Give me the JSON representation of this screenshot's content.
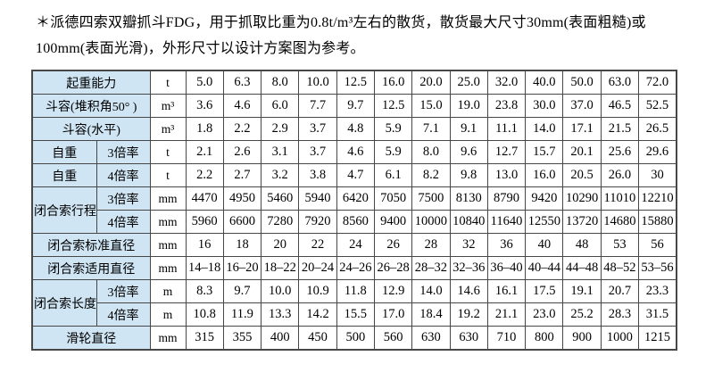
{
  "note": "＊派德四索双瓣抓斗FDG，用于抓取比重为0.8t/m³左右的散货，散货最大尺寸30mm(表面粗糙)或100mm(表面光滑)，外形尺寸以设计方案图为参考。",
  "colors": {
    "label_bg": "#cfe5f3",
    "border": "#474747"
  },
  "table": {
    "rows": [
      {
        "label": "起重能力",
        "label_colspan": 2,
        "unit": "t",
        "values": [
          "5.0",
          "6.3",
          "8.0",
          "10.0",
          "12.5",
          "16.0",
          "20.0",
          "25.0",
          "32.0",
          "40.0",
          "50.0",
          "63.0",
          "72.0"
        ]
      },
      {
        "label": "斗容(堆积角50° )",
        "label_colspan": 2,
        "unit": "m³",
        "values": [
          "3.6",
          "4.6",
          "6.0",
          "7.7",
          "9.7",
          "12.5",
          "15.0",
          "19.0",
          "23.8",
          "30.0",
          "37.0",
          "46.5",
          "52.5"
        ]
      },
      {
        "label": "斗容(水平)",
        "label_colspan": 2,
        "unit": "m³",
        "values": [
          "1.8",
          "2.2",
          "2.9",
          "3.7",
          "4.8",
          "5.9",
          "7.1",
          "9.1",
          "11.1",
          "14.0",
          "17.1",
          "21.5",
          "26.5"
        ]
      },
      {
        "label": "自重",
        "sub": "3倍率",
        "unit": "t",
        "values": [
          "2.1",
          "2.6",
          "3.1",
          "3.7",
          "4.6",
          "5.9",
          "8.0",
          "9.6",
          "12.7",
          "15.7",
          "20.1",
          "25.6",
          "29.6"
        ]
      },
      {
        "label": "自重",
        "sub": "4倍率",
        "unit": "t",
        "values": [
          "2.2",
          "2.7",
          "3.2",
          "3.8",
          "4.7",
          "6.1",
          "8.2",
          "9.8",
          "13.0",
          "16.0",
          "20.5",
          "26.0",
          "30"
        ]
      },
      {
        "label": "闭合索行程",
        "label_rowspan": 2,
        "sub": "3倍率",
        "unit": "mm",
        "values": [
          "4470",
          "4950",
          "5460",
          "5940",
          "6420",
          "7050",
          "7500",
          "8130",
          "8790",
          "9420",
          "10290",
          "11010",
          "12210"
        ]
      },
      {
        "sub": "4倍率",
        "unit": "mm",
        "values": [
          "5960",
          "6600",
          "7280",
          "7920",
          "8560",
          "9400",
          "10000",
          "10840",
          "11640",
          "12550",
          "13720",
          "14680",
          "15880"
        ]
      },
      {
        "label": "闭合索标准直径",
        "label_colspan": 2,
        "unit": "mm",
        "values": [
          "16",
          "18",
          "20",
          "22",
          "24",
          "26",
          "28",
          "32",
          "36",
          "40",
          "48",
          "53",
          "56"
        ]
      },
      {
        "label": "闭合索适用直径",
        "label_colspan": 2,
        "unit": "mm",
        "values": [
          "14–18",
          "16–20",
          "18–22",
          "20–24",
          "24–26",
          "26–28",
          "28–32",
          "32–36",
          "36–40",
          "40–44",
          "44–48",
          "48–52",
          "53–56"
        ]
      },
      {
        "label": "闭合索长度",
        "label_rowspan": 2,
        "sub": "3倍率",
        "unit": "m",
        "values": [
          "8.3",
          "9.7",
          "10.0",
          "10.9",
          "11.8",
          "12.9",
          "14.0",
          "14.6",
          "16.1",
          "17.5",
          "19.1",
          "20.7",
          "23.3"
        ]
      },
      {
        "sub": "4倍率",
        "unit": "m",
        "values": [
          "10.8",
          "11.9",
          "13.3",
          "14.2",
          "15.5",
          "17.0",
          "18.4",
          "19.2",
          "21.1",
          "23.0",
          "25.2",
          "28.3",
          "31.5"
        ]
      },
      {
        "label": "滑轮直径",
        "label_colspan": 2,
        "unit": "mm",
        "values": [
          "315",
          "355",
          "400",
          "450",
          "500",
          "560",
          "630",
          "630",
          "710",
          "800",
          "900",
          "1000",
          "1215"
        ]
      }
    ]
  }
}
